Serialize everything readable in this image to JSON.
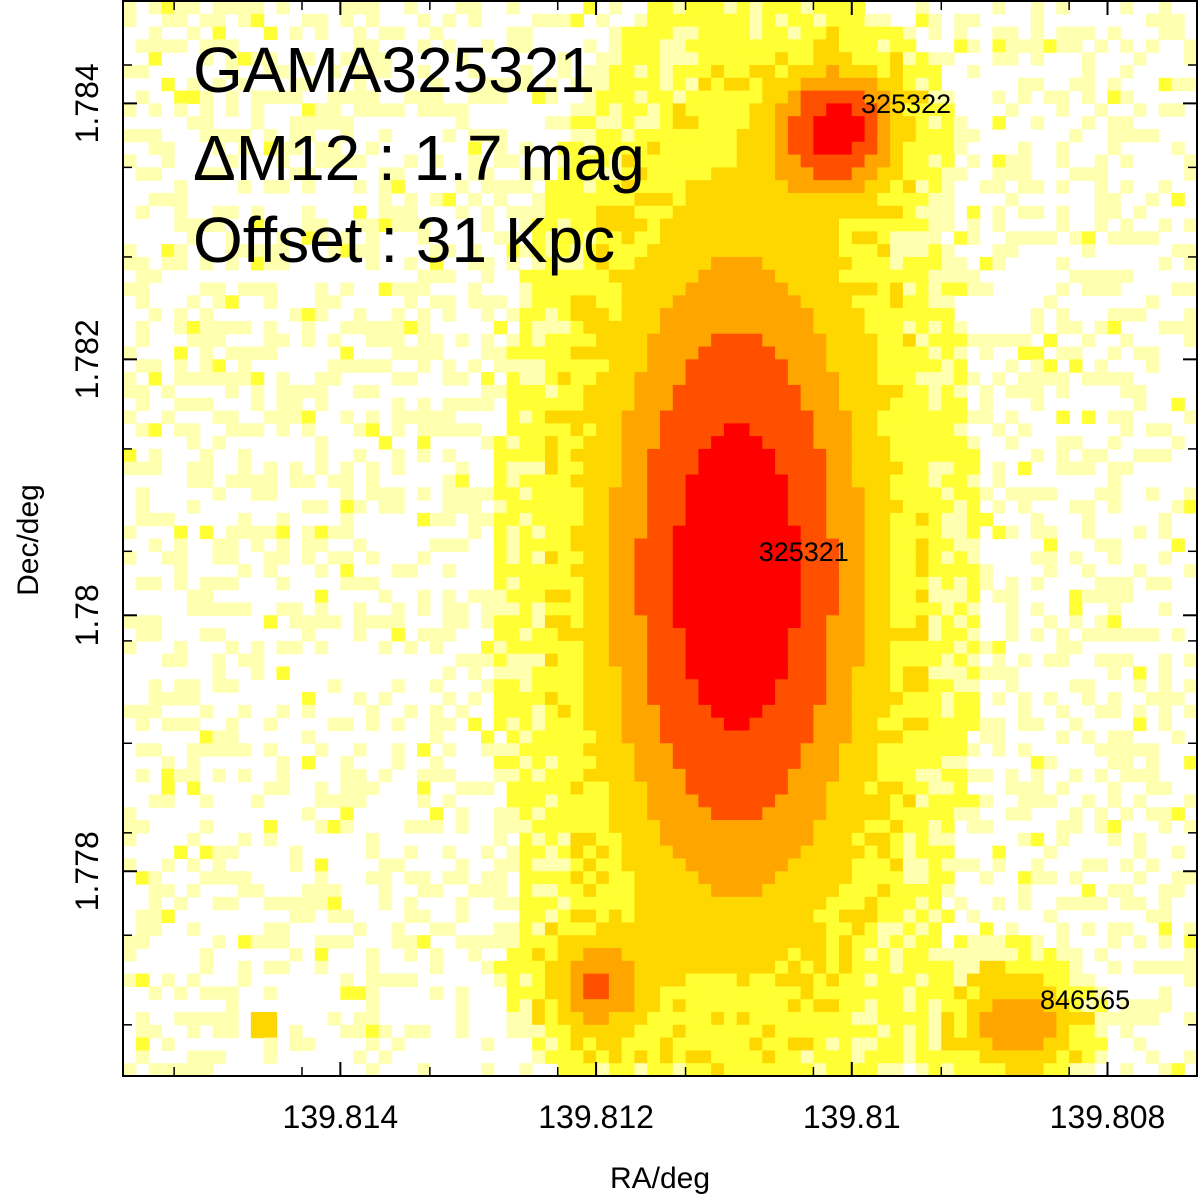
{
  "chart_data": {
    "type": "heatmap",
    "title": "",
    "xlabel": "RA/deg",
    "ylabel": "Dec/deg",
    "xlim": [
      139.8157,
      139.8073
    ],
    "ylim": [
      1.7764,
      1.7848
    ],
    "x_axis_reversed": true,
    "x_ticks": [
      139.814,
      139.812,
      139.81,
      139.808
    ],
    "x_tick_labels": [
      "139.814",
      "139.812",
      "139.81",
      "139.808"
    ],
    "x_minor_ticks": [
      139.8153,
      139.8143,
      139.8133,
      139.8123,
      139.8113,
      139.8103,
      139.8093,
      139.8083,
      139.8073
    ],
    "y_ticks": [
      1.778,
      1.78,
      1.782,
      1.784
    ],
    "y_tick_labels": [
      "1.778",
      "1.78",
      "1.782",
      "1.784"
    ],
    "y_minor_ticks": [
      1.7768,
      1.7775,
      1.7783,
      1.779,
      1.7798,
      1.7805,
      1.7813,
      1.782,
      1.7828,
      1.7835,
      1.7843
    ],
    "grid": false,
    "colormap": [
      "#ffffff",
      "#ffffb0",
      "#ffff33",
      "#ffd700",
      "#ffa500",
      "#ff5000",
      "#ff0000"
    ],
    "annotations": [
      {
        "text": "GAMA325321"
      },
      {
        "text": "ΔM12 : 1.7 mag"
      },
      {
        "text": "Offset : 31 Kpc"
      }
    ],
    "sources": [
      {
        "label": "325322",
        "ra": 139.8101,
        "dec": 1.7838,
        "peak": 0.85,
        "sigma_ra": 0.00034,
        "sigma_dec": 0.00034
      },
      {
        "label": "325321",
        "ra": 139.8109,
        "dec": 1.7803,
        "peak": 1.0,
        "sigma_ra": 0.00075,
        "sigma_dec": 0.0019
      },
      {
        "label": "846565",
        "ra": 139.8087,
        "dec": 1.7768,
        "peak": 0.6,
        "sigma_ra": 0.00032,
        "sigma_dec": 0.00028
      },
      {
        "label": "",
        "ra": 139.812,
        "dec": 1.7771,
        "peak": 0.55,
        "sigma_ra": 0.00028,
        "sigma_dec": 0.00028
      },
      {
        "label": "",
        "ra": 139.8146,
        "dec": 1.7768,
        "peak": 1.0,
        "sigma_ra": 5e-05,
        "sigma_dec": 5e-05
      }
    ]
  }
}
